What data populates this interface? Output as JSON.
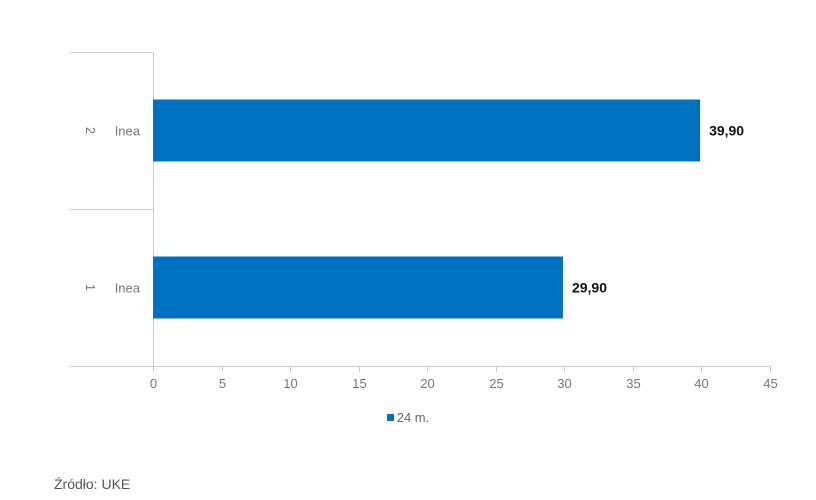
{
  "chart_data": {
    "type": "bar",
    "orientation": "horizontal",
    "categories": [
      {
        "rank": "2",
        "label": "Inea"
      },
      {
        "rank": "1",
        "label": "Inea"
      }
    ],
    "series": [
      {
        "name": "24 m.",
        "values": [
          39.9,
          29.9
        ],
        "labels": [
          "39,90",
          "29,90"
        ],
        "color": "#0070C0"
      }
    ],
    "xlim": [
      0,
      45
    ],
    "xticks": [
      "0",
      "5",
      "10",
      "15",
      "20",
      "25",
      "30",
      "35",
      "40",
      "45"
    ],
    "grid": false,
    "legend_position": "bottom"
  },
  "footer": {
    "source": "Źródło: UKE"
  }
}
